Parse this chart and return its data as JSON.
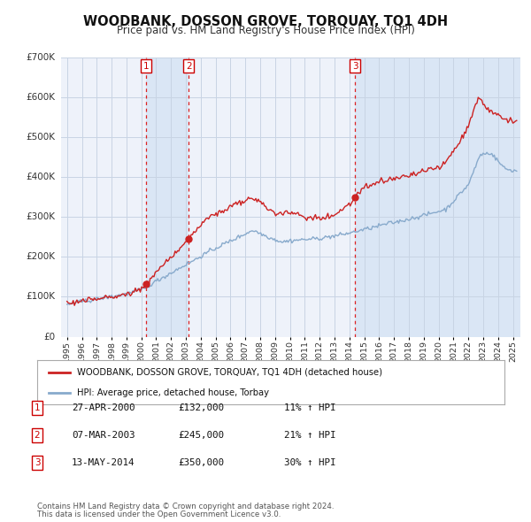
{
  "title": "WOODBANK, DOSSON GROVE, TORQUAY, TQ1 4DH",
  "subtitle": "Price paid vs. HM Land Registry's House Price Index (HPI)",
  "ylim": [
    0,
    700000
  ],
  "yticks": [
    0,
    100000,
    200000,
    300000,
    400000,
    500000,
    600000,
    700000
  ],
  "ytick_labels": [
    "£0",
    "£100K",
    "£200K",
    "£300K",
    "£400K",
    "£500K",
    "£600K",
    "£700K"
  ],
  "xlim_start": 1994.6,
  "xlim_end": 2025.5,
  "background_color": "#ffffff",
  "plot_background": "#eef2fa",
  "grid_color": "#d8dde8",
  "sale_color": "#cc2222",
  "hpi_color": "#88aacc",
  "sale_label": "WOODBANK, DOSSON GROVE, TORQUAY, TQ1 4DH (detached house)",
  "hpi_label": "HPI: Average price, detached house, Torbay",
  "transactions": [
    {
      "id": 1,
      "date_num": 2000.32,
      "price": 132000,
      "label": "1"
    },
    {
      "id": 2,
      "date_num": 2003.18,
      "price": 245000,
      "label": "2"
    },
    {
      "id": 3,
      "date_num": 2014.37,
      "price": 350000,
      "label": "3"
    }
  ],
  "table_rows": [
    {
      "num": "1",
      "date": "27-APR-2000",
      "price": "£132,000",
      "pct": "11% ↑ HPI"
    },
    {
      "num": "2",
      "date": "07-MAR-2003",
      "price": "£245,000",
      "pct": "21% ↑ HPI"
    },
    {
      "num": "3",
      "date": "13-MAY-2014",
      "price": "£350,000",
      "pct": "30% ↑ HPI"
    }
  ],
  "footnote1": "Contains HM Land Registry data © Crown copyright and database right 2024.",
  "footnote2": "This data is licensed under the Open Government Licence v3.0.",
  "shade_regions": [
    {
      "x_start": 2000.32,
      "x_end": 2003.18,
      "color": "#dae6f5"
    },
    {
      "x_start": 2014.37,
      "x_end": 2025.5,
      "color": "#dae6f5"
    }
  ]
}
